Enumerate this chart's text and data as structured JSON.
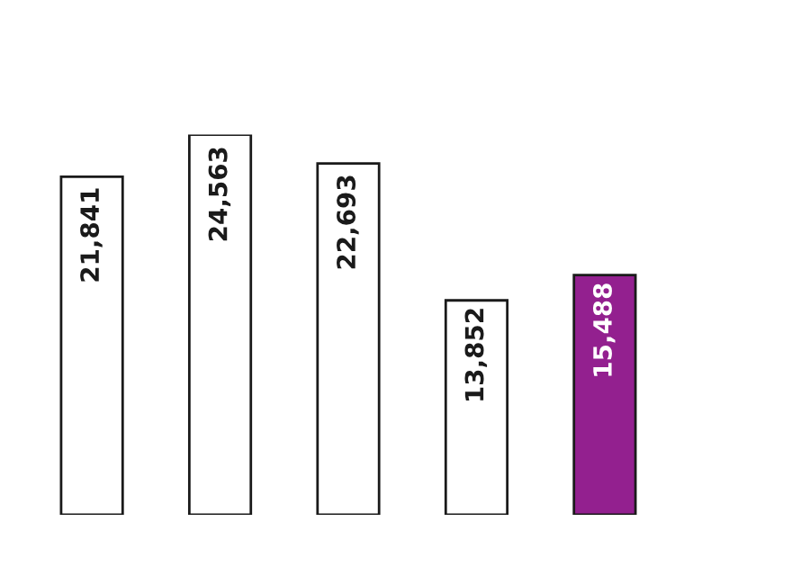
{
  "chart_data": {
    "type": "bar",
    "categories": [
      null,
      null,
      null,
      null,
      null
    ],
    "values": [
      21841,
      24563,
      22693,
      13852,
      15488
    ],
    "value_labels": [
      "21,841",
      "24,563",
      "22,693",
      "13,852",
      "15,488"
    ],
    "colors": [
      "#ffffff",
      "#ffffff",
      "#ffffff",
      "#ffffff",
      "#93208f"
    ]
  }
}
